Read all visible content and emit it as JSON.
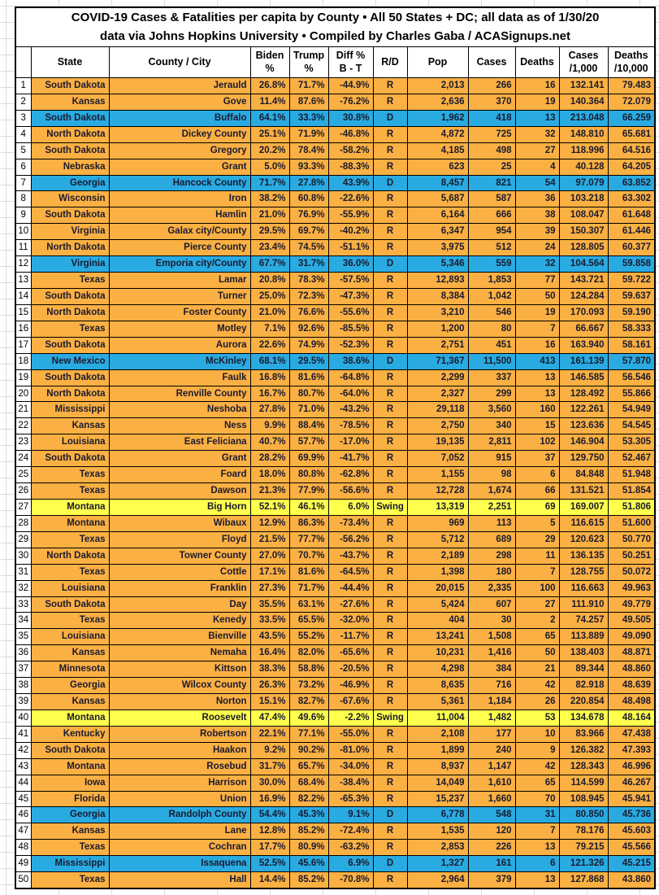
{
  "title": {
    "line1": "COVID-19 Cases & Fatalities per capita by County • All 50 States + DC; all data as of 1/30/20",
    "line2": "data via Johns Hopkins University • Compiled by Charles Gaba / ACASignups.net"
  },
  "colors": {
    "republican_row": "#FBB043",
    "democrat_row": "#29ABE2",
    "swing_row": "#FFFF4D",
    "cell_text": "#1A1A2E",
    "border": "#000000",
    "sheet_gridline": "#D8DCDC"
  },
  "columns": [
    {
      "key": "rank",
      "label": ""
    },
    {
      "key": "state",
      "label": "State"
    },
    {
      "key": "county",
      "label": "County / City"
    },
    {
      "key": "biden_pct",
      "label": "Biden\n%"
    },
    {
      "key": "trump_pct",
      "label": "Trump\n%"
    },
    {
      "key": "diff_pct",
      "label": "Diff %\nB - T"
    },
    {
      "key": "rd",
      "label": "R/D"
    },
    {
      "key": "pop",
      "label": "Pop"
    },
    {
      "key": "cases",
      "label": "Cases"
    },
    {
      "key": "deaths",
      "label": "Deaths"
    },
    {
      "key": "cases_per_1000",
      "label": "Cases\n/1,000"
    },
    {
      "key": "deaths_per_10000",
      "label": "Deaths\n/10,000"
    }
  ],
  "rows": [
    {
      "rank": "1",
      "state": "South Dakota",
      "county": "Jerauld",
      "biden_pct": "26.8%",
      "trump_pct": "71.7%",
      "diff_pct": "-44.9%",
      "rd": "R",
      "pop": "2,013",
      "cases": "266",
      "deaths": "16",
      "cases_per_1000": "132.141",
      "deaths_per_10000": "79.483"
    },
    {
      "rank": "2",
      "state": "Kansas",
      "county": "Gove",
      "biden_pct": "11.4%",
      "trump_pct": "87.6%",
      "diff_pct": "-76.2%",
      "rd": "R",
      "pop": "2,636",
      "cases": "370",
      "deaths": "19",
      "cases_per_1000": "140.364",
      "deaths_per_10000": "72.079"
    },
    {
      "rank": "3",
      "state": "South Dakota",
      "county": "Buffalo",
      "biden_pct": "64.1%",
      "trump_pct": "33.3%",
      "diff_pct": "30.8%",
      "rd": "D",
      "pop": "1,962",
      "cases": "418",
      "deaths": "13",
      "cases_per_1000": "213.048",
      "deaths_per_10000": "66.259"
    },
    {
      "rank": "4",
      "state": "North Dakota",
      "county": "Dickey County",
      "biden_pct": "25.1%",
      "trump_pct": "71.9%",
      "diff_pct": "-46.8%",
      "rd": "R",
      "pop": "4,872",
      "cases": "725",
      "deaths": "32",
      "cases_per_1000": "148.810",
      "deaths_per_10000": "65.681"
    },
    {
      "rank": "5",
      "state": "South Dakota",
      "county": "Gregory",
      "biden_pct": "20.2%",
      "trump_pct": "78.4%",
      "diff_pct": "-58.2%",
      "rd": "R",
      "pop": "4,185",
      "cases": "498",
      "deaths": "27",
      "cases_per_1000": "118.996",
      "deaths_per_10000": "64.516"
    },
    {
      "rank": "6",
      "state": "Nebraska",
      "county": "Grant",
      "biden_pct": "5.0%",
      "trump_pct": "93.3%",
      "diff_pct": "-88.3%",
      "rd": "R",
      "pop": "623",
      "cases": "25",
      "deaths": "4",
      "cases_per_1000": "40.128",
      "deaths_per_10000": "64.205"
    },
    {
      "rank": "7",
      "state": "Georgia",
      "county": "Hancock County",
      "biden_pct": "71.7%",
      "trump_pct": "27.8%",
      "diff_pct": "43.9%",
      "rd": "D",
      "pop": "8,457",
      "cases": "821",
      "deaths": "54",
      "cases_per_1000": "97.079",
      "deaths_per_10000": "63.852"
    },
    {
      "rank": "8",
      "state": "Wisconsin",
      "county": "Iron",
      "biden_pct": "38.2%",
      "trump_pct": "60.8%",
      "diff_pct": "-22.6%",
      "rd": "R",
      "pop": "5,687",
      "cases": "587",
      "deaths": "36",
      "cases_per_1000": "103.218",
      "deaths_per_10000": "63.302"
    },
    {
      "rank": "9",
      "state": "South Dakota",
      "county": "Hamlin",
      "biden_pct": "21.0%",
      "trump_pct": "76.9%",
      "diff_pct": "-55.9%",
      "rd": "R",
      "pop": "6,164",
      "cases": "666",
      "deaths": "38",
      "cases_per_1000": "108.047",
      "deaths_per_10000": "61.648"
    },
    {
      "rank": "10",
      "state": "Virginia",
      "county": "Galax city/County",
      "biden_pct": "29.5%",
      "trump_pct": "69.7%",
      "diff_pct": "-40.2%",
      "rd": "R",
      "pop": "6,347",
      "cases": "954",
      "deaths": "39",
      "cases_per_1000": "150.307",
      "deaths_per_10000": "61.446"
    },
    {
      "rank": "11",
      "state": "North Dakota",
      "county": "Pierce County",
      "biden_pct": "23.4%",
      "trump_pct": "74.5%",
      "diff_pct": "-51.1%",
      "rd": "R",
      "pop": "3,975",
      "cases": "512",
      "deaths": "24",
      "cases_per_1000": "128.805",
      "deaths_per_10000": "60.377"
    },
    {
      "rank": "12",
      "state": "Virginia",
      "county": "Emporia city/County",
      "biden_pct": "67.7%",
      "trump_pct": "31.7%",
      "diff_pct": "36.0%",
      "rd": "D",
      "pop": "5,346",
      "cases": "559",
      "deaths": "32",
      "cases_per_1000": "104.564",
      "deaths_per_10000": "59.858"
    },
    {
      "rank": "13",
      "state": "Texas",
      "county": "Lamar",
      "biden_pct": "20.8%",
      "trump_pct": "78.3%",
      "diff_pct": "-57.5%",
      "rd": "R",
      "pop": "12,893",
      "cases": "1,853",
      "deaths": "77",
      "cases_per_1000": "143.721",
      "deaths_per_10000": "59.722"
    },
    {
      "rank": "14",
      "state": "South Dakota",
      "county": "Turner",
      "biden_pct": "25.0%",
      "trump_pct": "72.3%",
      "diff_pct": "-47.3%",
      "rd": "R",
      "pop": "8,384",
      "cases": "1,042",
      "deaths": "50",
      "cases_per_1000": "124.284",
      "deaths_per_10000": "59.637"
    },
    {
      "rank": "15",
      "state": "North Dakota",
      "county": "Foster County",
      "biden_pct": "21.0%",
      "trump_pct": "76.6%",
      "diff_pct": "-55.6%",
      "rd": "R",
      "pop": "3,210",
      "cases": "546",
      "deaths": "19",
      "cases_per_1000": "170.093",
      "deaths_per_10000": "59.190"
    },
    {
      "rank": "16",
      "state": "Texas",
      "county": "Motley",
      "biden_pct": "7.1%",
      "trump_pct": "92.6%",
      "diff_pct": "-85.5%",
      "rd": "R",
      "pop": "1,200",
      "cases": "80",
      "deaths": "7",
      "cases_per_1000": "66.667",
      "deaths_per_10000": "58.333"
    },
    {
      "rank": "17",
      "state": "South Dakota",
      "county": "Aurora",
      "biden_pct": "22.6%",
      "trump_pct": "74.9%",
      "diff_pct": "-52.3%",
      "rd": "R",
      "pop": "2,751",
      "cases": "451",
      "deaths": "16",
      "cases_per_1000": "163.940",
      "deaths_per_10000": "58.161"
    },
    {
      "rank": "18",
      "state": "New Mexico",
      "county": "McKinley",
      "biden_pct": "68.1%",
      "trump_pct": "29.5%",
      "diff_pct": "38.6%",
      "rd": "D",
      "pop": "71,367",
      "cases": "11,500",
      "deaths": "413",
      "cases_per_1000": "161.139",
      "deaths_per_10000": "57.870"
    },
    {
      "rank": "19",
      "state": "South Dakota",
      "county": "Faulk",
      "biden_pct": "16.8%",
      "trump_pct": "81.6%",
      "diff_pct": "-64.8%",
      "rd": "R",
      "pop": "2,299",
      "cases": "337",
      "deaths": "13",
      "cases_per_1000": "146.585",
      "deaths_per_10000": "56.546"
    },
    {
      "rank": "20",
      "state": "North Dakota",
      "county": "Renville County",
      "biden_pct": "16.7%",
      "trump_pct": "80.7%",
      "diff_pct": "-64.0%",
      "rd": "R",
      "pop": "2,327",
      "cases": "299",
      "deaths": "13",
      "cases_per_1000": "128.492",
      "deaths_per_10000": "55.866"
    },
    {
      "rank": "21",
      "state": "Mississippi",
      "county": "Neshoba",
      "biden_pct": "27.8%",
      "trump_pct": "71.0%",
      "diff_pct": "-43.2%",
      "rd": "R",
      "pop": "29,118",
      "cases": "3,560",
      "deaths": "160",
      "cases_per_1000": "122.261",
      "deaths_per_10000": "54.949"
    },
    {
      "rank": "22",
      "state": "Kansas",
      "county": "Ness",
      "biden_pct": "9.9%",
      "trump_pct": "88.4%",
      "diff_pct": "-78.5%",
      "rd": "R",
      "pop": "2,750",
      "cases": "340",
      "deaths": "15",
      "cases_per_1000": "123.636",
      "deaths_per_10000": "54.545"
    },
    {
      "rank": "23",
      "state": "Louisiana",
      "county": "East Feliciana",
      "biden_pct": "40.7%",
      "trump_pct": "57.7%",
      "diff_pct": "-17.0%",
      "rd": "R",
      "pop": "19,135",
      "cases": "2,811",
      "deaths": "102",
      "cases_per_1000": "146.904",
      "deaths_per_10000": "53.305"
    },
    {
      "rank": "24",
      "state": "South Dakota",
      "county": "Grant",
      "biden_pct": "28.2%",
      "trump_pct": "69.9%",
      "diff_pct": "-41.7%",
      "rd": "R",
      "pop": "7,052",
      "cases": "915",
      "deaths": "37",
      "cases_per_1000": "129.750",
      "deaths_per_10000": "52.467"
    },
    {
      "rank": "25",
      "state": "Texas",
      "county": "Foard",
      "biden_pct": "18.0%",
      "trump_pct": "80.8%",
      "diff_pct": "-62.8%",
      "rd": "R",
      "pop": "1,155",
      "cases": "98",
      "deaths": "6",
      "cases_per_1000": "84.848",
      "deaths_per_10000": "51.948"
    },
    {
      "rank": "26",
      "state": "Texas",
      "county": "Dawson",
      "biden_pct": "21.3%",
      "trump_pct": "77.9%",
      "diff_pct": "-56.6%",
      "rd": "R",
      "pop": "12,728",
      "cases": "1,674",
      "deaths": "66",
      "cases_per_1000": "131.521",
      "deaths_per_10000": "51.854"
    },
    {
      "rank": "27",
      "state": "Montana",
      "county": "Big Horn",
      "biden_pct": "52.1%",
      "trump_pct": "46.1%",
      "diff_pct": "6.0%",
      "rd": "Swing",
      "pop": "13,319",
      "cases": "2,251",
      "deaths": "69",
      "cases_per_1000": "169.007",
      "deaths_per_10000": "51.806"
    },
    {
      "rank": "28",
      "state": "Montana",
      "county": "Wibaux",
      "biden_pct": "12.9%",
      "trump_pct": "86.3%",
      "diff_pct": "-73.4%",
      "rd": "R",
      "pop": "969",
      "cases": "113",
      "deaths": "5",
      "cases_per_1000": "116.615",
      "deaths_per_10000": "51.600"
    },
    {
      "rank": "29",
      "state": "Texas",
      "county": "Floyd",
      "biden_pct": "21.5%",
      "trump_pct": "77.7%",
      "diff_pct": "-56.2%",
      "rd": "R",
      "pop": "5,712",
      "cases": "689",
      "deaths": "29",
      "cases_per_1000": "120.623",
      "deaths_per_10000": "50.770"
    },
    {
      "rank": "30",
      "state": "North Dakota",
      "county": "Towner County",
      "biden_pct": "27.0%",
      "trump_pct": "70.7%",
      "diff_pct": "-43.7%",
      "rd": "R",
      "pop": "2,189",
      "cases": "298",
      "deaths": "11",
      "cases_per_1000": "136.135",
      "deaths_per_10000": "50.251"
    },
    {
      "rank": "31",
      "state": "Texas",
      "county": "Cottle",
      "biden_pct": "17.1%",
      "trump_pct": "81.6%",
      "diff_pct": "-64.5%",
      "rd": "R",
      "pop": "1,398",
      "cases": "180",
      "deaths": "7",
      "cases_per_1000": "128.755",
      "deaths_per_10000": "50.072"
    },
    {
      "rank": "32",
      "state": "Louisiana",
      "county": "Franklin",
      "biden_pct": "27.3%",
      "trump_pct": "71.7%",
      "diff_pct": "-44.4%",
      "rd": "R",
      "pop": "20,015",
      "cases": "2,335",
      "deaths": "100",
      "cases_per_1000": "116.663",
      "deaths_per_10000": "49.963"
    },
    {
      "rank": "33",
      "state": "South Dakota",
      "county": "Day",
      "biden_pct": "35.5%",
      "trump_pct": "63.1%",
      "diff_pct": "-27.6%",
      "rd": "R",
      "pop": "5,424",
      "cases": "607",
      "deaths": "27",
      "cases_per_1000": "111.910",
      "deaths_per_10000": "49.779"
    },
    {
      "rank": "34",
      "state": "Texas",
      "county": "Kenedy",
      "biden_pct": "33.5%",
      "trump_pct": "65.5%",
      "diff_pct": "-32.0%",
      "rd": "R",
      "pop": "404",
      "cases": "30",
      "deaths": "2",
      "cases_per_1000": "74.257",
      "deaths_per_10000": "49.505"
    },
    {
      "rank": "35",
      "state": "Louisiana",
      "county": "Bienville",
      "biden_pct": "43.5%",
      "trump_pct": "55.2%",
      "diff_pct": "-11.7%",
      "rd": "R",
      "pop": "13,241",
      "cases": "1,508",
      "deaths": "65",
      "cases_per_1000": "113.889",
      "deaths_per_10000": "49.090"
    },
    {
      "rank": "36",
      "state": "Kansas",
      "county": "Nemaha",
      "biden_pct": "16.4%",
      "trump_pct": "82.0%",
      "diff_pct": "-65.6%",
      "rd": "R",
      "pop": "10,231",
      "cases": "1,416",
      "deaths": "50",
      "cases_per_1000": "138.403",
      "deaths_per_10000": "48.871"
    },
    {
      "rank": "37",
      "state": "Minnesota",
      "county": "Kittson",
      "biden_pct": "38.3%",
      "trump_pct": "58.8%",
      "diff_pct": "-20.5%",
      "rd": "R",
      "pop": "4,298",
      "cases": "384",
      "deaths": "21",
      "cases_per_1000": "89.344",
      "deaths_per_10000": "48.860"
    },
    {
      "rank": "38",
      "state": "Georgia",
      "county": "Wilcox County",
      "biden_pct": "26.3%",
      "trump_pct": "73.2%",
      "diff_pct": "-46.9%",
      "rd": "R",
      "pop": "8,635",
      "cases": "716",
      "deaths": "42",
      "cases_per_1000": "82.918",
      "deaths_per_10000": "48.639"
    },
    {
      "rank": "39",
      "state": "Kansas",
      "county": "Norton",
      "biden_pct": "15.1%",
      "trump_pct": "82.7%",
      "diff_pct": "-67.6%",
      "rd": "R",
      "pop": "5,361",
      "cases": "1,184",
      "deaths": "26",
      "cases_per_1000": "220.854",
      "deaths_per_10000": "48.498"
    },
    {
      "rank": "40",
      "state": "Montana",
      "county": "Roosevelt",
      "biden_pct": "47.4%",
      "trump_pct": "49.6%",
      "diff_pct": "-2.2%",
      "rd": "Swing",
      "pop": "11,004",
      "cases": "1,482",
      "deaths": "53",
      "cases_per_1000": "134.678",
      "deaths_per_10000": "48.164"
    },
    {
      "rank": "41",
      "state": "Kentucky",
      "county": "Robertson",
      "biden_pct": "22.1%",
      "trump_pct": "77.1%",
      "diff_pct": "-55.0%",
      "rd": "R",
      "pop": "2,108",
      "cases": "177",
      "deaths": "10",
      "cases_per_1000": "83.966",
      "deaths_per_10000": "47.438"
    },
    {
      "rank": "42",
      "state": "South Dakota",
      "county": "Haakon",
      "biden_pct": "9.2%",
      "trump_pct": "90.2%",
      "diff_pct": "-81.0%",
      "rd": "R",
      "pop": "1,899",
      "cases": "240",
      "deaths": "9",
      "cases_per_1000": "126.382",
      "deaths_per_10000": "47.393"
    },
    {
      "rank": "43",
      "state": "Montana",
      "county": "Rosebud",
      "biden_pct": "31.7%",
      "trump_pct": "65.7%",
      "diff_pct": "-34.0%",
      "rd": "R",
      "pop": "8,937",
      "cases": "1,147",
      "deaths": "42",
      "cases_per_1000": "128.343",
      "deaths_per_10000": "46.996"
    },
    {
      "rank": "44",
      "state": "Iowa",
      "county": "Harrison",
      "biden_pct": "30.0%",
      "trump_pct": "68.4%",
      "diff_pct": "-38.4%",
      "rd": "R",
      "pop": "14,049",
      "cases": "1,610",
      "deaths": "65",
      "cases_per_1000": "114.599",
      "deaths_per_10000": "46.267"
    },
    {
      "rank": "45",
      "state": "Florida",
      "county": "Union",
      "biden_pct": "16.9%",
      "trump_pct": "82.2%",
      "diff_pct": "-65.3%",
      "rd": "R",
      "pop": "15,237",
      "cases": "1,660",
      "deaths": "70",
      "cases_per_1000": "108.945",
      "deaths_per_10000": "45.941"
    },
    {
      "rank": "46",
      "state": "Georgia",
      "county": "Randolph County",
      "biden_pct": "54.4%",
      "trump_pct": "45.3%",
      "diff_pct": "9.1%",
      "rd": "D",
      "pop": "6,778",
      "cases": "548",
      "deaths": "31",
      "cases_per_1000": "80.850",
      "deaths_per_10000": "45.736"
    },
    {
      "rank": "47",
      "state": "Kansas",
      "county": "Lane",
      "biden_pct": "12.8%",
      "trump_pct": "85.2%",
      "diff_pct": "-72.4%",
      "rd": "R",
      "pop": "1,535",
      "cases": "120",
      "deaths": "7",
      "cases_per_1000": "78.176",
      "deaths_per_10000": "45.603"
    },
    {
      "rank": "48",
      "state": "Texas",
      "county": "Cochran",
      "biden_pct": "17.7%",
      "trump_pct": "80.9%",
      "diff_pct": "-63.2%",
      "rd": "R",
      "pop": "2,853",
      "cases": "226",
      "deaths": "13",
      "cases_per_1000": "79.215",
      "deaths_per_10000": "45.566"
    },
    {
      "rank": "49",
      "state": "Mississippi",
      "county": "Issaquena",
      "biden_pct": "52.5%",
      "trump_pct": "45.6%",
      "diff_pct": "6.9%",
      "rd": "D",
      "pop": "1,327",
      "cases": "161",
      "deaths": "6",
      "cases_per_1000": "121.326",
      "deaths_per_10000": "45.215"
    },
    {
      "rank": "50",
      "state": "Texas",
      "county": "Hall",
      "biden_pct": "14.4%",
      "trump_pct": "85.2%",
      "diff_pct": "-70.8%",
      "rd": "R",
      "pop": "2,964",
      "cases": "379",
      "deaths": "13",
      "cases_per_1000": "127.868",
      "deaths_per_10000": "43.860"
    }
  ]
}
